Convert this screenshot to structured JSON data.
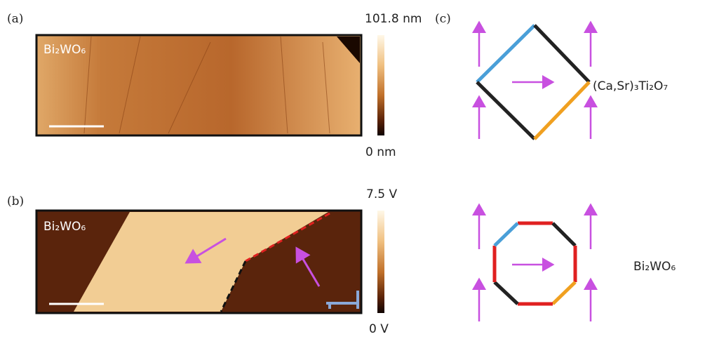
{
  "panels": [
    {
      "label": "(a)",
      "image_label": "Bi₂WO₆",
      "colorbar_max": "101.8 nm",
      "colorbar_min": "0 nm"
    },
    {
      "label": "(b)",
      "image_label": "Bi₂WO₆",
      "colorbar_max": "7.5 V",
      "colorbar_min": "0 V"
    },
    {
      "label": "(c)",
      "structures": [
        "(Ca,Sr)₃Ti₂O₇",
        "Bi₂WO₆"
      ]
    }
  ]
}
